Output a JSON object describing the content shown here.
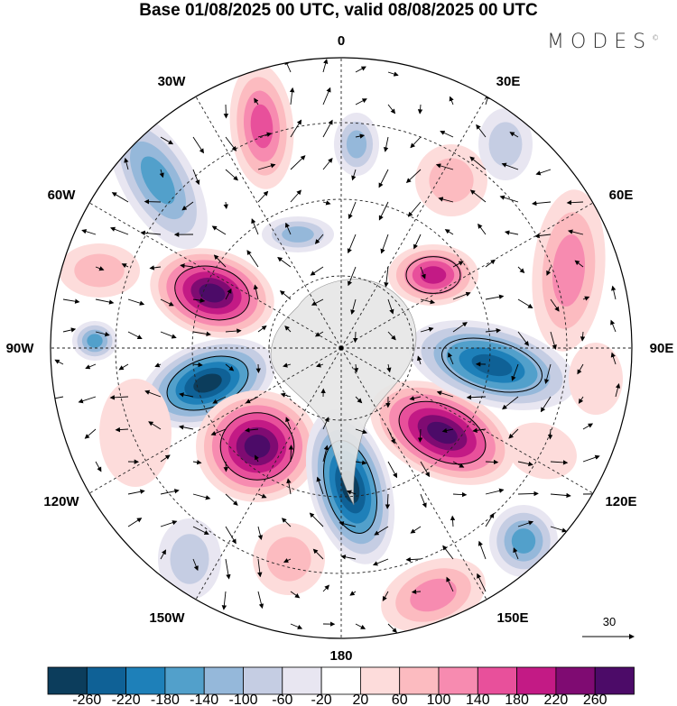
{
  "title": "Base 01/08/2025 00 UTC, valid 08/08/2025 00 UTC",
  "brand": "MODES",
  "brand_mark": "©",
  "longitude_labels": [
    "0",
    "30E",
    "60E",
    "90E",
    "120E",
    "150E",
    "180",
    "150W",
    "120W",
    "90W",
    "60W",
    "30W"
  ],
  "reference_vector": {
    "label": "30"
  },
  "colorbar": {
    "labels": [
      "-260",
      "-220",
      "-180",
      "-140",
      "-100",
      "-60",
      "-20",
      "20",
      "60",
      "100",
      "140",
      "180",
      "220",
      "260"
    ],
    "colors": [
      "#0c3d5c",
      "#0f6196",
      "#1e80b9",
      "#52a0cb",
      "#95b8da",
      "#c5cde3",
      "#e8e6f1",
      "#ffffff",
      "#fddcdb",
      "#fcbbc0",
      "#f78bb0",
      "#e8509b",
      "#c31a85",
      "#7f0b72",
      "#4c0b68"
    ]
  }
}
